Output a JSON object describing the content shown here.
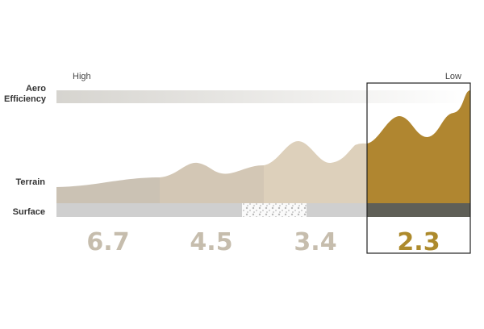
{
  "scale": {
    "high": "High",
    "low": "Low"
  },
  "rows": {
    "aero": "Aero Efficiency",
    "terrain": "Terrain",
    "surface": "Surface"
  },
  "scores": [
    "6.7",
    "4.5",
    "3.4",
    "2.3"
  ]
}
